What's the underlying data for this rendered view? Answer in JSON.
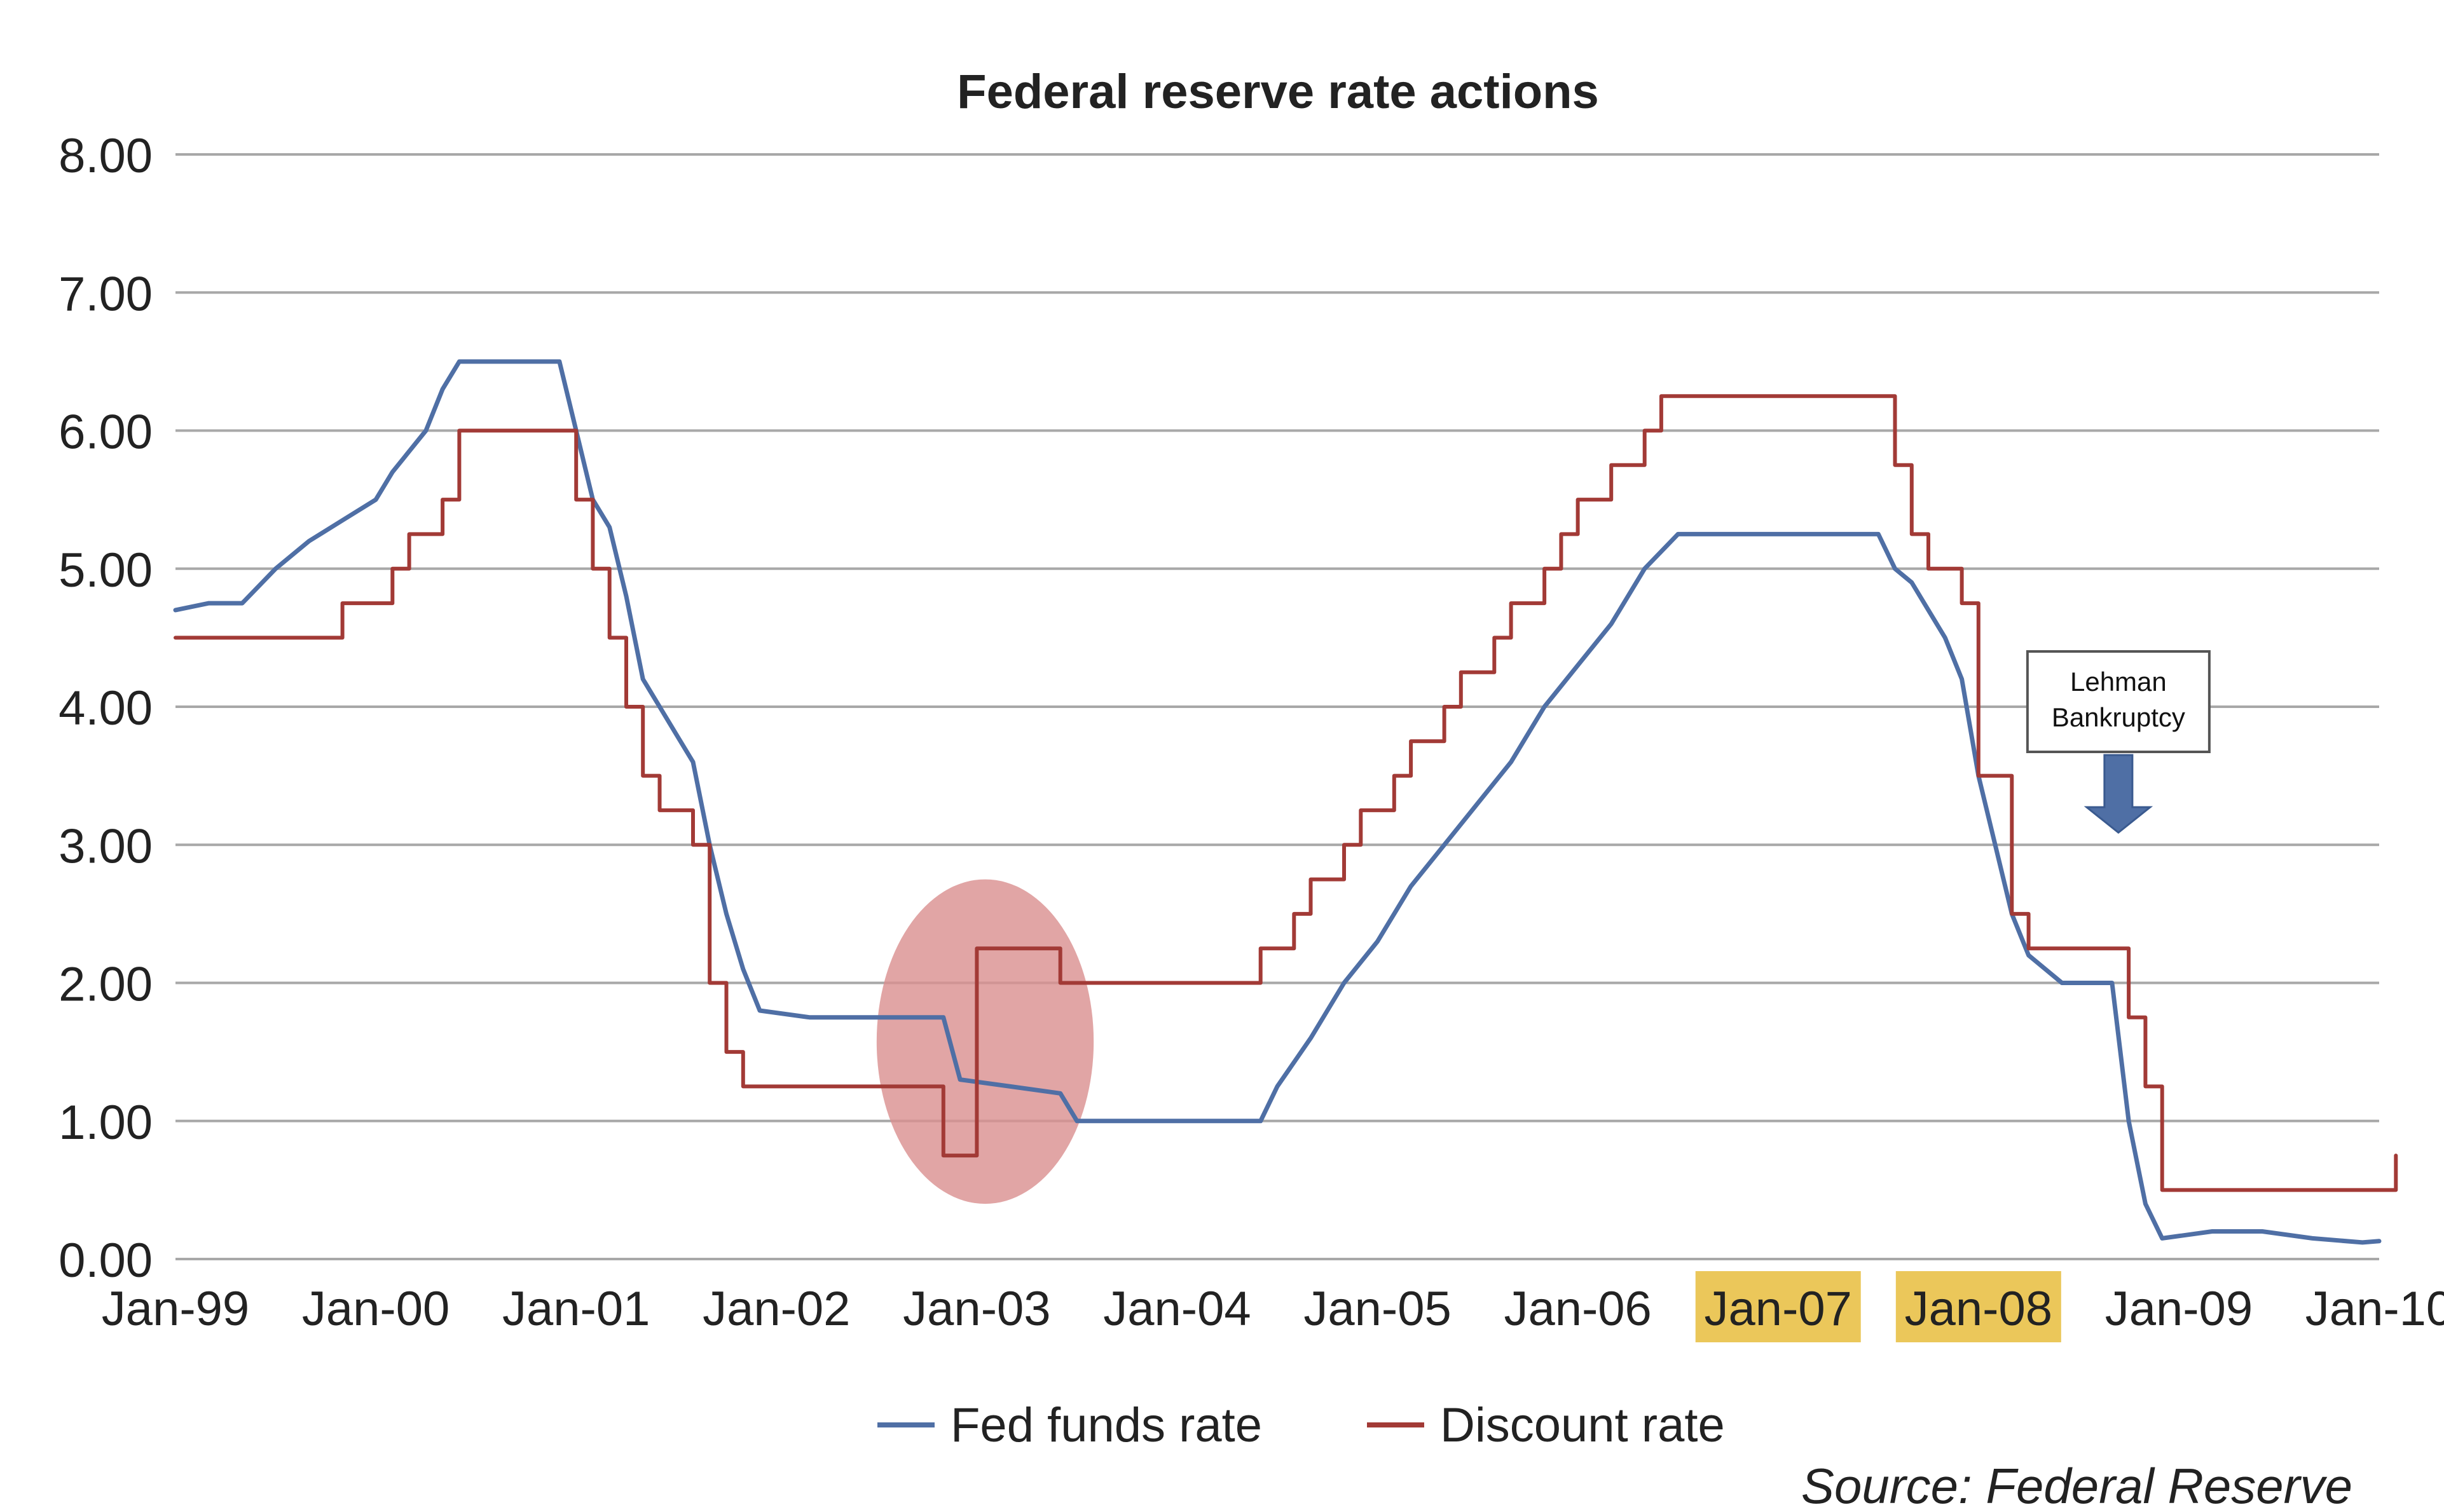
{
  "chart_data": {
    "type": "line",
    "title": "Federal reserve rate actions",
    "xlabel": "",
    "ylabel": "",
    "ylim": [
      0,
      8
    ],
    "xlim": [
      "1999-01",
      "2010-01"
    ],
    "grid": true,
    "legend_position": "bottom-center",
    "y_ticks": [
      "0.00",
      "1.00",
      "2.00",
      "3.00",
      "4.00",
      "5.00",
      "6.00",
      "7.00",
      "8.00"
    ],
    "x_ticks": [
      "Jan-99",
      "Jan-00",
      "Jan-01",
      "Jan-02",
      "Jan-03",
      "Jan-04",
      "Jan-05",
      "Jan-06",
      "Jan-07",
      "Jan-08",
      "Jan-09",
      "Jan-10"
    ],
    "highlighted_x_ticks": [
      "Jan-07",
      "Jan-08"
    ],
    "series": [
      {
        "name": "Fed funds rate",
        "color": "#4f6fa5",
        "points": [
          [
            "1999-01",
            4.7
          ],
          [
            "1999-03",
            4.75
          ],
          [
            "1999-05",
            4.75
          ],
          [
            "1999-07",
            5.0
          ],
          [
            "1999-09",
            5.2
          ],
          [
            "1999-11",
            5.35
          ],
          [
            "2000-01",
            5.5
          ],
          [
            "2000-02",
            5.7
          ],
          [
            "2000-03",
            5.85
          ],
          [
            "2000-04",
            6.0
          ],
          [
            "2000-05",
            6.3
          ],
          [
            "2000-06",
            6.5
          ],
          [
            "2000-08",
            6.5
          ],
          [
            "2000-10",
            6.5
          ],
          [
            "2000-12",
            6.5
          ],
          [
            "2001-01",
            6.0
          ],
          [
            "2001-02",
            5.5
          ],
          [
            "2001-03",
            5.3
          ],
          [
            "2001-04",
            4.8
          ],
          [
            "2001-05",
            4.2
          ],
          [
            "2001-06",
            4.0
          ],
          [
            "2001-07",
            3.8
          ],
          [
            "2001-08",
            3.6
          ],
          [
            "2001-09",
            3.0
          ],
          [
            "2001-10",
            2.5
          ],
          [
            "2001-11",
            2.1
          ],
          [
            "2001-12",
            1.8
          ],
          [
            "2002-03",
            1.75
          ],
          [
            "2002-06",
            1.75
          ],
          [
            "2002-09",
            1.75
          ],
          [
            "2002-11",
            1.75
          ],
          [
            "2002-12",
            1.3
          ],
          [
            "2003-03",
            1.25
          ],
          [
            "2003-06",
            1.2
          ],
          [
            "2003-07",
            1.0
          ],
          [
            "2003-12",
            1.0
          ],
          [
            "2004-03",
            1.0
          ],
          [
            "2004-06",
            1.0
          ],
          [
            "2004-07",
            1.25
          ],
          [
            "2004-09",
            1.6
          ],
          [
            "2004-11",
            2.0
          ],
          [
            "2005-01",
            2.3
          ],
          [
            "2005-03",
            2.7
          ],
          [
            "2005-05",
            3.0
          ],
          [
            "2005-07",
            3.3
          ],
          [
            "2005-09",
            3.6
          ],
          [
            "2005-11",
            4.0
          ],
          [
            "2006-01",
            4.3
          ],
          [
            "2006-03",
            4.6
          ],
          [
            "2006-05",
            5.0
          ],
          [
            "2006-07",
            5.25
          ],
          [
            "2006-10",
            5.25
          ],
          [
            "2007-01",
            5.25
          ],
          [
            "2007-04",
            5.25
          ],
          [
            "2007-07",
            5.25
          ],
          [
            "2007-08",
            5.0
          ],
          [
            "2007-09",
            4.9
          ],
          [
            "2007-10",
            4.7
          ],
          [
            "2007-11",
            4.5
          ],
          [
            "2007-12",
            4.2
          ],
          [
            "2008-01",
            3.5
          ],
          [
            "2008-02",
            3.0
          ],
          [
            "2008-03",
            2.5
          ],
          [
            "2008-04",
            2.2
          ],
          [
            "2008-06",
            2.0
          ],
          [
            "2008-08",
            2.0
          ],
          [
            "2008-09",
            2.0
          ],
          [
            "2008-10",
            1.0
          ],
          [
            "2008-11",
            0.4
          ],
          [
            "2008-12",
            0.15
          ],
          [
            "2009-03",
            0.2
          ],
          [
            "2009-06",
            0.2
          ],
          [
            "2009-09",
            0.15
          ],
          [
            "2009-12",
            0.12
          ],
          [
            "2010-01",
            0.13
          ]
        ]
      },
      {
        "name": "Discount rate",
        "color": "#a23a36",
        "points": [
          [
            "1999-01",
            4.5
          ],
          [
            "1999-11",
            4.5
          ],
          [
            "1999-11",
            4.75
          ],
          [
            "2000-02",
            4.75
          ],
          [
            "2000-02",
            5.0
          ],
          [
            "2000-03",
            5.0
          ],
          [
            "2000-03",
            5.25
          ],
          [
            "2000-05",
            5.25
          ],
          [
            "2000-05",
            5.5
          ],
          [
            "2000-06",
            5.5
          ],
          [
            "2000-06",
            6.0
          ],
          [
            "2001-01",
            6.0
          ],
          [
            "2001-01",
            5.5
          ],
          [
            "2001-02",
            5.5
          ],
          [
            "2001-02",
            5.0
          ],
          [
            "2001-03",
            5.0
          ],
          [
            "2001-03",
            4.5
          ],
          [
            "2001-04",
            4.5
          ],
          [
            "2001-04",
            4.0
          ],
          [
            "2001-05",
            4.0
          ],
          [
            "2001-05",
            3.5
          ],
          [
            "2001-06",
            3.5
          ],
          [
            "2001-06",
            3.25
          ],
          [
            "2001-08",
            3.25
          ],
          [
            "2001-08",
            3.0
          ],
          [
            "2001-09",
            3.0
          ],
          [
            "2001-09",
            2.0
          ],
          [
            "2001-10",
            2.0
          ],
          [
            "2001-10",
            1.5
          ],
          [
            "2001-11",
            1.5
          ],
          [
            "2001-11",
            1.25
          ],
          [
            "2002-11",
            1.25
          ],
          [
            "2002-11",
            0.75
          ],
          [
            "2003-01",
            0.75
          ],
          [
            "2003-01",
            2.25
          ],
          [
            "2003-06",
            2.25
          ],
          [
            "2003-06",
            2.0
          ],
          [
            "2004-06",
            2.0
          ],
          [
            "2004-06",
            2.25
          ],
          [
            "2004-08",
            2.25
          ],
          [
            "2004-08",
            2.5
          ],
          [
            "2004-09",
            2.5
          ],
          [
            "2004-09",
            2.75
          ],
          [
            "2004-11",
            2.75
          ],
          [
            "2004-11",
            3.0
          ],
          [
            "2004-12",
            3.0
          ],
          [
            "2004-12",
            3.25
          ],
          [
            "2005-02",
            3.25
          ],
          [
            "2005-02",
            3.5
          ],
          [
            "2005-03",
            3.5
          ],
          [
            "2005-03",
            3.75
          ],
          [
            "2005-05",
            3.75
          ],
          [
            "2005-05",
            4.0
          ],
          [
            "2005-06",
            4.0
          ],
          [
            "2005-06",
            4.25
          ],
          [
            "2005-08",
            4.25
          ],
          [
            "2005-08",
            4.5
          ],
          [
            "2005-09",
            4.5
          ],
          [
            "2005-09",
            4.75
          ],
          [
            "2005-11",
            4.75
          ],
          [
            "2005-11",
            5.0
          ],
          [
            "2005-12",
            5.0
          ],
          [
            "2005-12",
            5.25
          ],
          [
            "2006-01",
            5.25
          ],
          [
            "2006-01",
            5.5
          ],
          [
            "2006-03",
            5.5
          ],
          [
            "2006-03",
            5.75
          ],
          [
            "2006-05",
            5.75
          ],
          [
            "2006-05",
            6.0
          ],
          [
            "2006-06",
            6.0
          ],
          [
            "2006-06",
            6.25
          ],
          [
            "2007-08",
            6.25
          ],
          [
            "2007-08",
            5.75
          ],
          [
            "2007-09",
            5.75
          ],
          [
            "2007-09",
            5.25
          ],
          [
            "2007-10",
            5.25
          ],
          [
            "2007-10",
            5.0
          ],
          [
            "2007-12",
            5.0
          ],
          [
            "2007-12",
            4.75
          ],
          [
            "2008-01",
            4.75
          ],
          [
            "2008-01",
            3.5
          ],
          [
            "2008-03",
            3.5
          ],
          [
            "2008-03",
            2.5
          ],
          [
            "2008-04",
            2.5
          ],
          [
            "2008-04",
            2.25
          ],
          [
            "2008-10",
            2.25
          ],
          [
            "2008-10",
            1.75
          ],
          [
            "2008-11",
            1.75
          ],
          [
            "2008-11",
            1.25
          ],
          [
            "2008-12",
            1.25
          ],
          [
            "2008-12",
            0.5
          ],
          [
            "2010-02",
            0.5
          ],
          [
            "2010-02",
            0.75
          ]
        ]
      }
    ],
    "annotations": [
      {
        "type": "callout",
        "text": "Lehman Bankruptcy",
        "lines": [
          "Lehman",
          "Bankruptcy"
        ],
        "x": "2008-09",
        "y": 3.0
      },
      {
        "type": "ellipse",
        "x_from": "2002-07",
        "x_to": "2003-08",
        "y_from": 0.4,
        "y_to": 2.75,
        "color": "#d98f8f"
      }
    ],
    "source": "Source: Federal Reserve"
  },
  "colors": {
    "fed_funds": "#4f6fa5",
    "discount": "#a23a36",
    "grid": "#a8a8a8",
    "highlight": "#ebc75a",
    "ellipse": "#d98f8f",
    "lehman_arrow": "#4f6fa5"
  }
}
